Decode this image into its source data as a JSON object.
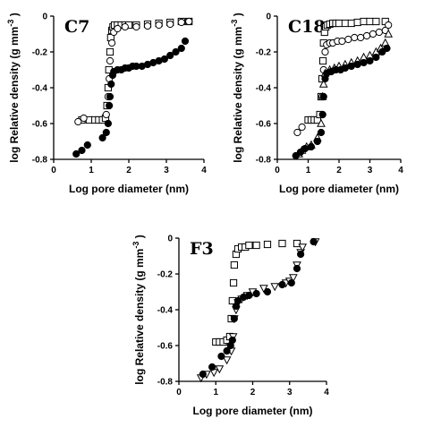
{
  "figure": {
    "xlabel": "Log  pore diameter (nm)",
    "ylabel": "log Relative density (g mm",
    "ylabel_sup": "-3",
    "ylabel_close": ")"
  },
  "chart_data": [
    {
      "id": "C7",
      "type": "scatter",
      "title": "C7",
      "xlabel": "Log  pore diameter (nm)",
      "ylabel": "log Relative density (g mm-3 )",
      "xlim": [
        0,
        4
      ],
      "ylim": [
        -0.8,
        0
      ],
      "xticks": [
        "0",
        "1",
        "2",
        "3",
        "4"
      ],
      "yticks": [
        "0",
        "-0.2",
        "-0.4",
        "-0.6",
        "-0.8"
      ],
      "series": [
        {
          "marker": "open-square",
          "points": [
            [
              0.75,
              -0.58
            ],
            [
              0.95,
              -0.58
            ],
            [
              1.1,
              -0.58
            ],
            [
              1.2,
              -0.58
            ],
            [
              1.3,
              -0.58
            ],
            [
              1.38,
              -0.57
            ],
            [
              1.42,
              -0.5
            ],
            [
              1.45,
              -0.4
            ],
            [
              1.47,
              -0.3
            ],
            [
              1.5,
              -0.2
            ],
            [
              1.52,
              -0.12
            ],
            [
              1.55,
              -0.08
            ],
            [
              1.58,
              -0.06
            ],
            [
              1.62,
              -0.05
            ],
            [
              1.7,
              -0.05
            ],
            [
              1.8,
              -0.05
            ],
            [
              1.9,
              -0.05
            ],
            [
              2.0,
              -0.05
            ],
            [
              2.2,
              -0.05
            ],
            [
              2.5,
              -0.045
            ],
            [
              2.8,
              -0.04
            ],
            [
              3.1,
              -0.035
            ],
            [
              3.4,
              -0.03
            ],
            [
              3.6,
              -0.03
            ]
          ]
        },
        {
          "marker": "open-circle",
          "points": [
            [
              0.65,
              -0.59
            ],
            [
              0.8,
              -0.57
            ],
            [
              1.4,
              -0.55
            ],
            [
              1.45,
              -0.45
            ],
            [
              1.48,
              -0.35
            ],
            [
              1.5,
              -0.25
            ],
            [
              1.55,
              -0.15
            ],
            [
              1.6,
              -0.09
            ],
            [
              1.7,
              -0.07
            ],
            [
              1.9,
              -0.06
            ],
            [
              2.2,
              -0.06
            ],
            [
              2.5,
              -0.055
            ],
            [
              2.8,
              -0.05
            ],
            [
              3.1,
              -0.045
            ],
            [
              3.4,
              -0.035
            ],
            [
              3.6,
              -0.03
            ]
          ]
        },
        {
          "marker": "filled-circle",
          "points": [
            [
              0.6,
              -0.77
            ],
            [
              0.75,
              -0.75
            ],
            [
              0.9,
              -0.72
            ],
            [
              1.3,
              -0.68
            ],
            [
              1.4,
              -0.65
            ],
            [
              1.45,
              -0.6
            ],
            [
              1.48,
              -0.5
            ],
            [
              1.5,
              -0.45
            ],
            [
              1.53,
              -0.38
            ],
            [
              1.57,
              -0.33
            ],
            [
              1.6,
              -0.31
            ],
            [
              1.7,
              -0.3
            ],
            [
              1.8,
              -0.3
            ],
            [
              1.9,
              -0.29
            ],
            [
              2.0,
              -0.29
            ],
            [
              2.1,
              -0.28
            ],
            [
              2.2,
              -0.28
            ],
            [
              2.35,
              -0.28
            ],
            [
              2.5,
              -0.27
            ],
            [
              2.65,
              -0.26
            ],
            [
              2.8,
              -0.25
            ],
            [
              2.95,
              -0.24
            ],
            [
              3.1,
              -0.22
            ],
            [
              3.25,
              -0.2
            ],
            [
              3.4,
              -0.18
            ],
            [
              3.5,
              -0.14
            ]
          ]
        }
      ]
    },
    {
      "id": "C18",
      "type": "scatter",
      "title": "C18",
      "xlabel": "Log  pore diameter (nm)",
      "ylabel": "log Relative density (g mm-3 )",
      "xlim": [
        0,
        4
      ],
      "ylim": [
        -0.8,
        0
      ],
      "xticks": [
        "0",
        "1",
        "2",
        "3",
        "4"
      ],
      "yticks": [
        "0",
        "-0.2",
        "-0.4",
        "-0.6",
        "-0.8"
      ],
      "series": [
        {
          "marker": "open-square",
          "points": [
            [
              1.0,
              -0.58
            ],
            [
              1.1,
              -0.58
            ],
            [
              1.2,
              -0.58
            ],
            [
              1.3,
              -0.58
            ],
            [
              1.38,
              -0.55
            ],
            [
              1.42,
              -0.45
            ],
            [
              1.45,
              -0.35
            ],
            [
              1.48,
              -0.25
            ],
            [
              1.5,
              -0.15
            ],
            [
              1.53,
              -0.09
            ],
            [
              1.57,
              -0.06
            ],
            [
              1.62,
              -0.05
            ],
            [
              1.7,
              -0.045
            ],
            [
              1.8,
              -0.04
            ],
            [
              1.9,
              -0.04
            ],
            [
              2.0,
              -0.04
            ],
            [
              2.2,
              -0.04
            ],
            [
              2.4,
              -0.04
            ],
            [
              2.6,
              -0.035
            ],
            [
              2.8,
              -0.03
            ],
            [
              3.0,
              -0.03
            ],
            [
              3.2,
              -0.03
            ],
            [
              3.5,
              -0.03
            ]
          ]
        },
        {
          "marker": "open-circle",
          "points": [
            [
              0.65,
              -0.65
            ],
            [
              0.8,
              -0.62
            ],
            [
              1.45,
              -0.45
            ],
            [
              1.5,
              -0.3
            ],
            [
              1.55,
              -0.2
            ],
            [
              1.6,
              -0.16
            ],
            [
              1.7,
              -0.15
            ],
            [
              1.8,
              -0.15
            ],
            [
              1.95,
              -0.14
            ],
            [
              2.1,
              -0.14
            ],
            [
              2.3,
              -0.13
            ],
            [
              2.5,
              -0.12
            ],
            [
              2.7,
              -0.12
            ],
            [
              2.9,
              -0.11
            ],
            [
              3.1,
              -0.1
            ],
            [
              3.3,
              -0.09
            ],
            [
              3.5,
              -0.08
            ],
            [
              3.6,
              -0.05
            ]
          ]
        },
        {
          "marker": "open-triangle",
          "points": [
            [
              0.7,
              -0.77
            ],
            [
              0.8,
              -0.75
            ],
            [
              0.95,
              -0.73
            ],
            [
              1.1,
              -0.72
            ],
            [
              1.3,
              -0.68
            ],
            [
              1.42,
              -0.6
            ],
            [
              1.47,
              -0.45
            ],
            [
              1.5,
              -0.38
            ],
            [
              1.55,
              -0.32
            ],
            [
              1.7,
              -0.3
            ],
            [
              1.85,
              -0.29
            ],
            [
              2.0,
              -0.28
            ],
            [
              2.2,
              -0.27
            ],
            [
              2.4,
              -0.26
            ],
            [
              2.6,
              -0.25
            ],
            [
              2.8,
              -0.23
            ],
            [
              3.0,
              -0.22
            ],
            [
              3.2,
              -0.2
            ],
            [
              3.35,
              -0.18
            ],
            [
              3.5,
              -0.15
            ],
            [
              3.6,
              -0.1
            ]
          ]
        },
        {
          "marker": "filled-circle",
          "points": [
            [
              0.6,
              -0.78
            ],
            [
              0.75,
              -0.76
            ],
            [
              0.9,
              -0.74
            ],
            [
              1.1,
              -0.73
            ],
            [
              1.3,
              -0.7
            ],
            [
              1.42,
              -0.65
            ],
            [
              1.47,
              -0.55
            ],
            [
              1.5,
              -0.45
            ],
            [
              1.55,
              -0.35
            ],
            [
              1.6,
              -0.32
            ],
            [
              1.75,
              -0.31
            ],
            [
              1.9,
              -0.3
            ],
            [
              2.05,
              -0.3
            ],
            [
              2.2,
              -0.29
            ],
            [
              2.4,
              -0.28
            ],
            [
              2.6,
              -0.27
            ],
            [
              2.8,
              -0.26
            ],
            [
              3.0,
              -0.25
            ],
            [
              3.2,
              -0.23
            ],
            [
              3.4,
              -0.2
            ],
            [
              3.55,
              -0.18
            ]
          ]
        }
      ]
    },
    {
      "id": "F3",
      "type": "scatter",
      "title": "F3",
      "xlabel": "Log  pore diameter (nm)",
      "ylabel": "log Relative density (g mm-3 )",
      "xlim": [
        0,
        4
      ],
      "ylim": [
        -0.8,
        0
      ],
      "xticks": [
        "0",
        "1",
        "2",
        "3",
        "4"
      ],
      "yticks": [
        "0",
        "-0.2",
        "-0.4",
        "-0.6",
        "-0.8"
      ],
      "series": [
        {
          "marker": "open-square",
          "points": [
            [
              1.0,
              -0.58
            ],
            [
              1.1,
              -0.58
            ],
            [
              1.2,
              -0.58
            ],
            [
              1.3,
              -0.57
            ],
            [
              1.38,
              -0.55
            ],
            [
              1.42,
              -0.45
            ],
            [
              1.45,
              -0.35
            ],
            [
              1.48,
              -0.25
            ],
            [
              1.5,
              -0.15
            ],
            [
              1.55,
              -0.09
            ],
            [
              1.6,
              -0.06
            ],
            [
              1.7,
              -0.05
            ],
            [
              1.8,
              -0.05
            ],
            [
              1.9,
              -0.04
            ],
            [
              2.1,
              -0.04
            ],
            [
              2.4,
              -0.035
            ],
            [
              2.8,
              -0.03
            ],
            [
              3.2,
              -0.03
            ]
          ]
        },
        {
          "marker": "open-triangle-down",
          "points": [
            [
              0.6,
              -0.78
            ],
            [
              0.75,
              -0.76
            ],
            [
              0.95,
              -0.75
            ],
            [
              1.1,
              -0.73
            ],
            [
              1.3,
              -0.68
            ],
            [
              1.42,
              -0.63
            ],
            [
              1.47,
              -0.55
            ],
            [
              1.5,
              -0.45
            ],
            [
              1.55,
              -0.4
            ],
            [
              1.6,
              -0.36
            ],
            [
              1.7,
              -0.34
            ],
            [
              1.85,
              -0.32
            ],
            [
              2.0,
              -0.3
            ],
            [
              2.3,
              -0.28
            ],
            [
              2.6,
              -0.27
            ],
            [
              2.9,
              -0.25
            ],
            [
              3.0,
              -0.24
            ],
            [
              3.1,
              -0.22
            ],
            [
              3.2,
              -0.15
            ],
            [
              3.3,
              -0.08
            ],
            [
              3.35,
              -0.05
            ],
            [
              3.7,
              -0.02
            ]
          ]
        },
        {
          "marker": "filled-circle",
          "points": [
            [
              0.65,
              -0.76
            ],
            [
              0.9,
              -0.72
            ],
            [
              1.15,
              -0.66
            ],
            [
              1.3,
              -0.63
            ],
            [
              1.4,
              -0.6
            ],
            [
              1.45,
              -0.57
            ],
            [
              1.5,
              -0.45
            ],
            [
              1.55,
              -0.38
            ],
            [
              1.6,
              -0.35
            ],
            [
              1.75,
              -0.33
            ],
            [
              1.9,
              -0.32
            ],
            [
              2.1,
              -0.31
            ],
            [
              2.4,
              -0.3
            ],
            [
              2.8,
              -0.26
            ],
            [
              3.05,
              -0.25
            ],
            [
              3.2,
              -0.17
            ],
            [
              3.3,
              -0.09
            ],
            [
              3.65,
              -0.02
            ]
          ]
        }
      ]
    }
  ]
}
